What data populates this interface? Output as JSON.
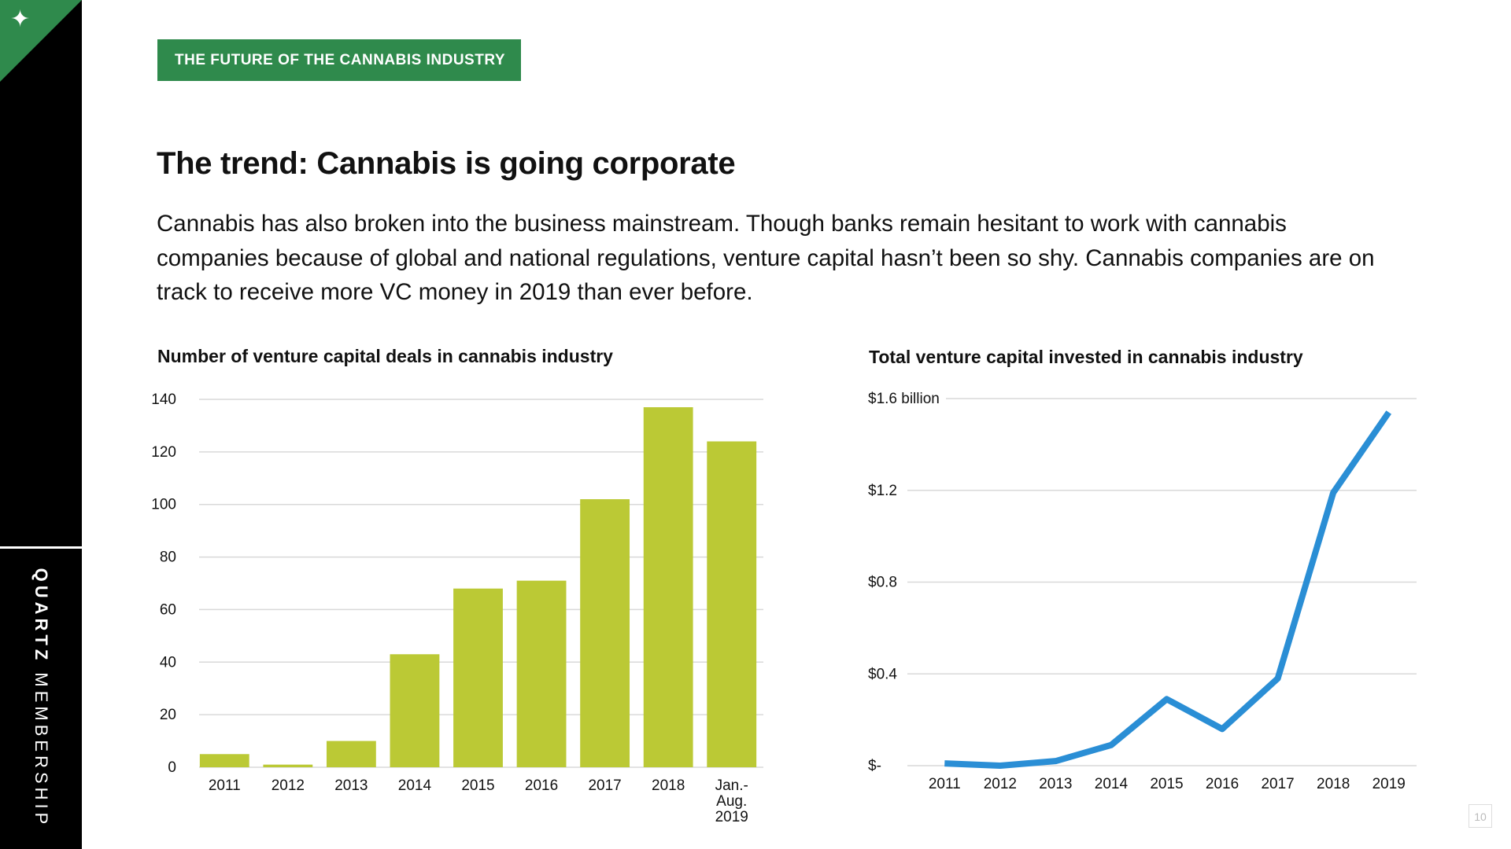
{
  "brand": {
    "name_bold": "QUARTZ",
    "name_light": "MEMBERSHIP"
  },
  "tag": "THE FUTURE OF THE CANNABIS INDUSTRY",
  "title": "The trend: Cannabis is going corporate",
  "body": "Cannabis has also broken into the business mainstream. Though banks remain hesitant to work with cannabis companies because of global and national regulations, venture capital hasn’t been so shy. Cannabis companies are on track to receive more VC money in 2019 than ever before.",
  "page_number": "10",
  "colors": {
    "accent_green": "#2f8a4c",
    "bar": "#bbc935",
    "line": "#2a8ed5"
  },
  "chart_data": [
    {
      "type": "bar",
      "title": "Number of venture capital deals in cannabis industry",
      "categories": [
        "2011",
        "2012",
        "2013",
        "2014",
        "2015",
        "2016",
        "2017",
        "2018",
        "Jan.- Aug. 2019"
      ],
      "values": [
        5,
        1,
        10,
        43,
        68,
        71,
        102,
        137,
        124
      ],
      "ylim": [
        0,
        140
      ],
      "yticks": [
        "0",
        "20",
        "40",
        "60",
        "80",
        "100",
        "120",
        "140"
      ],
      "grid": true
    },
    {
      "type": "line",
      "title": "Total venture capital invested in cannabis industry",
      "x": [
        "2011",
        "2012",
        "2013",
        "2014",
        "2015",
        "2016",
        "2017",
        "2018",
        "2019"
      ],
      "values": [
        0.01,
        0.0,
        0.02,
        0.09,
        0.29,
        0.16,
        0.38,
        1.19,
        1.54
      ],
      "ylim": [
        0,
        1.6
      ],
      "yticks": [
        "$-",
        "$0.4",
        "$0.8",
        "$1.2",
        "$1.6 billion"
      ],
      "grid": true
    }
  ]
}
